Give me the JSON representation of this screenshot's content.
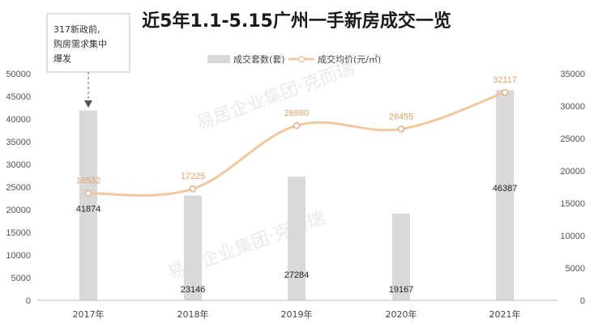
{
  "chart_data": {
    "type": "bar",
    "title": "近5年1.1-5.15广州一手新房成交一览",
    "categories": [
      "2017年",
      "2018年",
      "2019年",
      "2020年",
      "2021年"
    ],
    "series": [
      {
        "name": "成交套数(套)",
        "kind": "bar",
        "axis": "left",
        "color": "#d9d9d9",
        "values": [
          41874,
          23146,
          27284,
          19167,
          46387
        ]
      },
      {
        "name": "成交均价(元/㎡)",
        "kind": "line",
        "axis": "right",
        "color": "#f0c8a0",
        "values": [
          16532,
          17225,
          26980,
          26455,
          32117
        ]
      }
    ],
    "y_left": {
      "range": [
        0,
        50000
      ],
      "ticks": [
        "0",
        "5000",
        "10000",
        "15000",
        "20000",
        "25000",
        "30000",
        "35000",
        "40000",
        "45000",
        "50000"
      ]
    },
    "y_right": {
      "range": [
        0,
        35000
      ],
      "ticks": [
        "0",
        "5000",
        "10000",
        "15000",
        "20000",
        "25000",
        "30000",
        "35000"
      ]
    },
    "legend_position": "top-center",
    "grid": false,
    "annotation": {
      "lines": [
        "317新政前,",
        "购房需求集中",
        "爆发"
      ],
      "target_category": "2017年"
    },
    "watermark": "易居企业集团·克而瑞"
  }
}
